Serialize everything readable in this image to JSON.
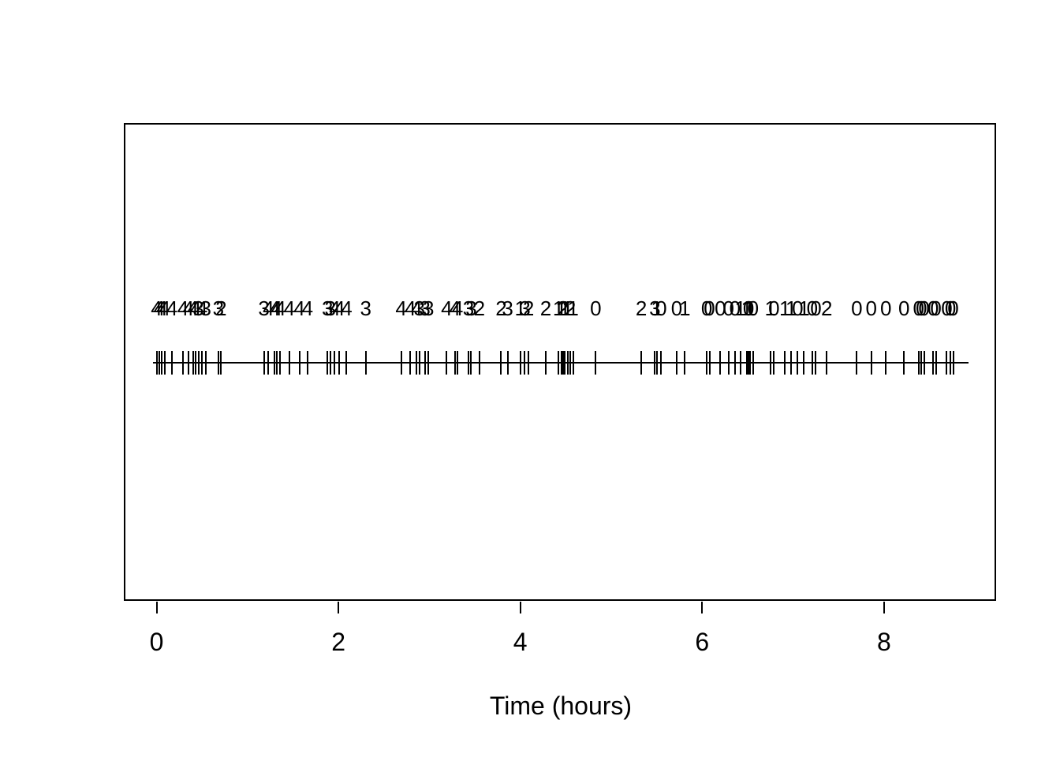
{
  "figure": {
    "background_color": "#ffffff",
    "foreground_color": "#000000",
    "border": "solid black rectangle plot frame, no y-axis, no title"
  },
  "chart_data": {
    "type": "scatter",
    "style": "rug-event-plot-with-text-labels",
    "title": "",
    "xlabel": "Time (hours)",
    "ylabel": "",
    "xlim": [
      -0.05,
      9.0
    ],
    "x_ticks": [
      0,
      2,
      4,
      6,
      8
    ],
    "x_tick_labels": [
      "0",
      "2",
      "4",
      "6",
      "8"
    ],
    "grid": "off",
    "legend": "none",
    "x": [
      0.0,
      0.03,
      0.06,
      0.09,
      0.17,
      0.29,
      0.35,
      0.4,
      0.43,
      0.46,
      0.5,
      0.54,
      0.68,
      0.71,
      1.18,
      1.23,
      1.3,
      1.32,
      1.36,
      1.46,
      1.57,
      1.66,
      1.88,
      1.91,
      1.96,
      2.01,
      2.09,
      2.3,
      2.69,
      2.79,
      2.86,
      2.89,
      2.95,
      2.99,
      3.19,
      3.28,
      3.31,
      3.43,
      3.46,
      3.55,
      3.79,
      3.86,
      4.0,
      4.05,
      4.09,
      4.28,
      4.42,
      4.45,
      4.47,
      4.49,
      4.52,
      4.55,
      4.58,
      4.83,
      5.33,
      5.48,
      5.5,
      5.55,
      5.72,
      5.81,
      6.05,
      6.08,
      6.2,
      6.29,
      6.36,
      6.42,
      6.49,
      6.51,
      6.53,
      6.56,
      6.75,
      6.79,
      6.91,
      6.98,
      7.05,
      7.12,
      7.21,
      7.25,
      7.37,
      7.7,
      7.86,
      8.02,
      8.22,
      8.38,
      8.41,
      8.44,
      8.54,
      8.57,
      8.69,
      8.73,
      8.76
    ],
    "labels": [
      "4",
      "4",
      "4",
      "4",
      "4",
      "4",
      "4",
      "4",
      "4",
      "3",
      "4",
      "3",
      "3",
      "2",
      "3",
      "4",
      "4",
      "4",
      "4",
      "4",
      "4",
      "4",
      "3",
      "3",
      "4",
      "4",
      "4",
      "3",
      "4",
      "4",
      "4",
      "3",
      "3",
      "3",
      "4",
      "4",
      "4",
      "3",
      "3",
      "2",
      "2",
      "3",
      "1",
      "3",
      "2",
      "2",
      "1",
      "1",
      "2",
      "1",
      "1",
      "2",
      "1",
      "0",
      "2",
      "3",
      "1",
      "0",
      "0",
      "1",
      "0",
      "0",
      "0",
      "0",
      "0",
      "1",
      "1",
      "0",
      "1",
      "0",
      "1",
      "0",
      "1",
      "1",
      "0",
      "1",
      "0",
      "0",
      "2",
      "0",
      "0",
      "0",
      "0",
      "0",
      "0",
      "0",
      "0",
      "0",
      "0",
      "0",
      "0"
    ],
    "rug_line_extent_hours": [
      -0.04,
      8.93
    ]
  }
}
